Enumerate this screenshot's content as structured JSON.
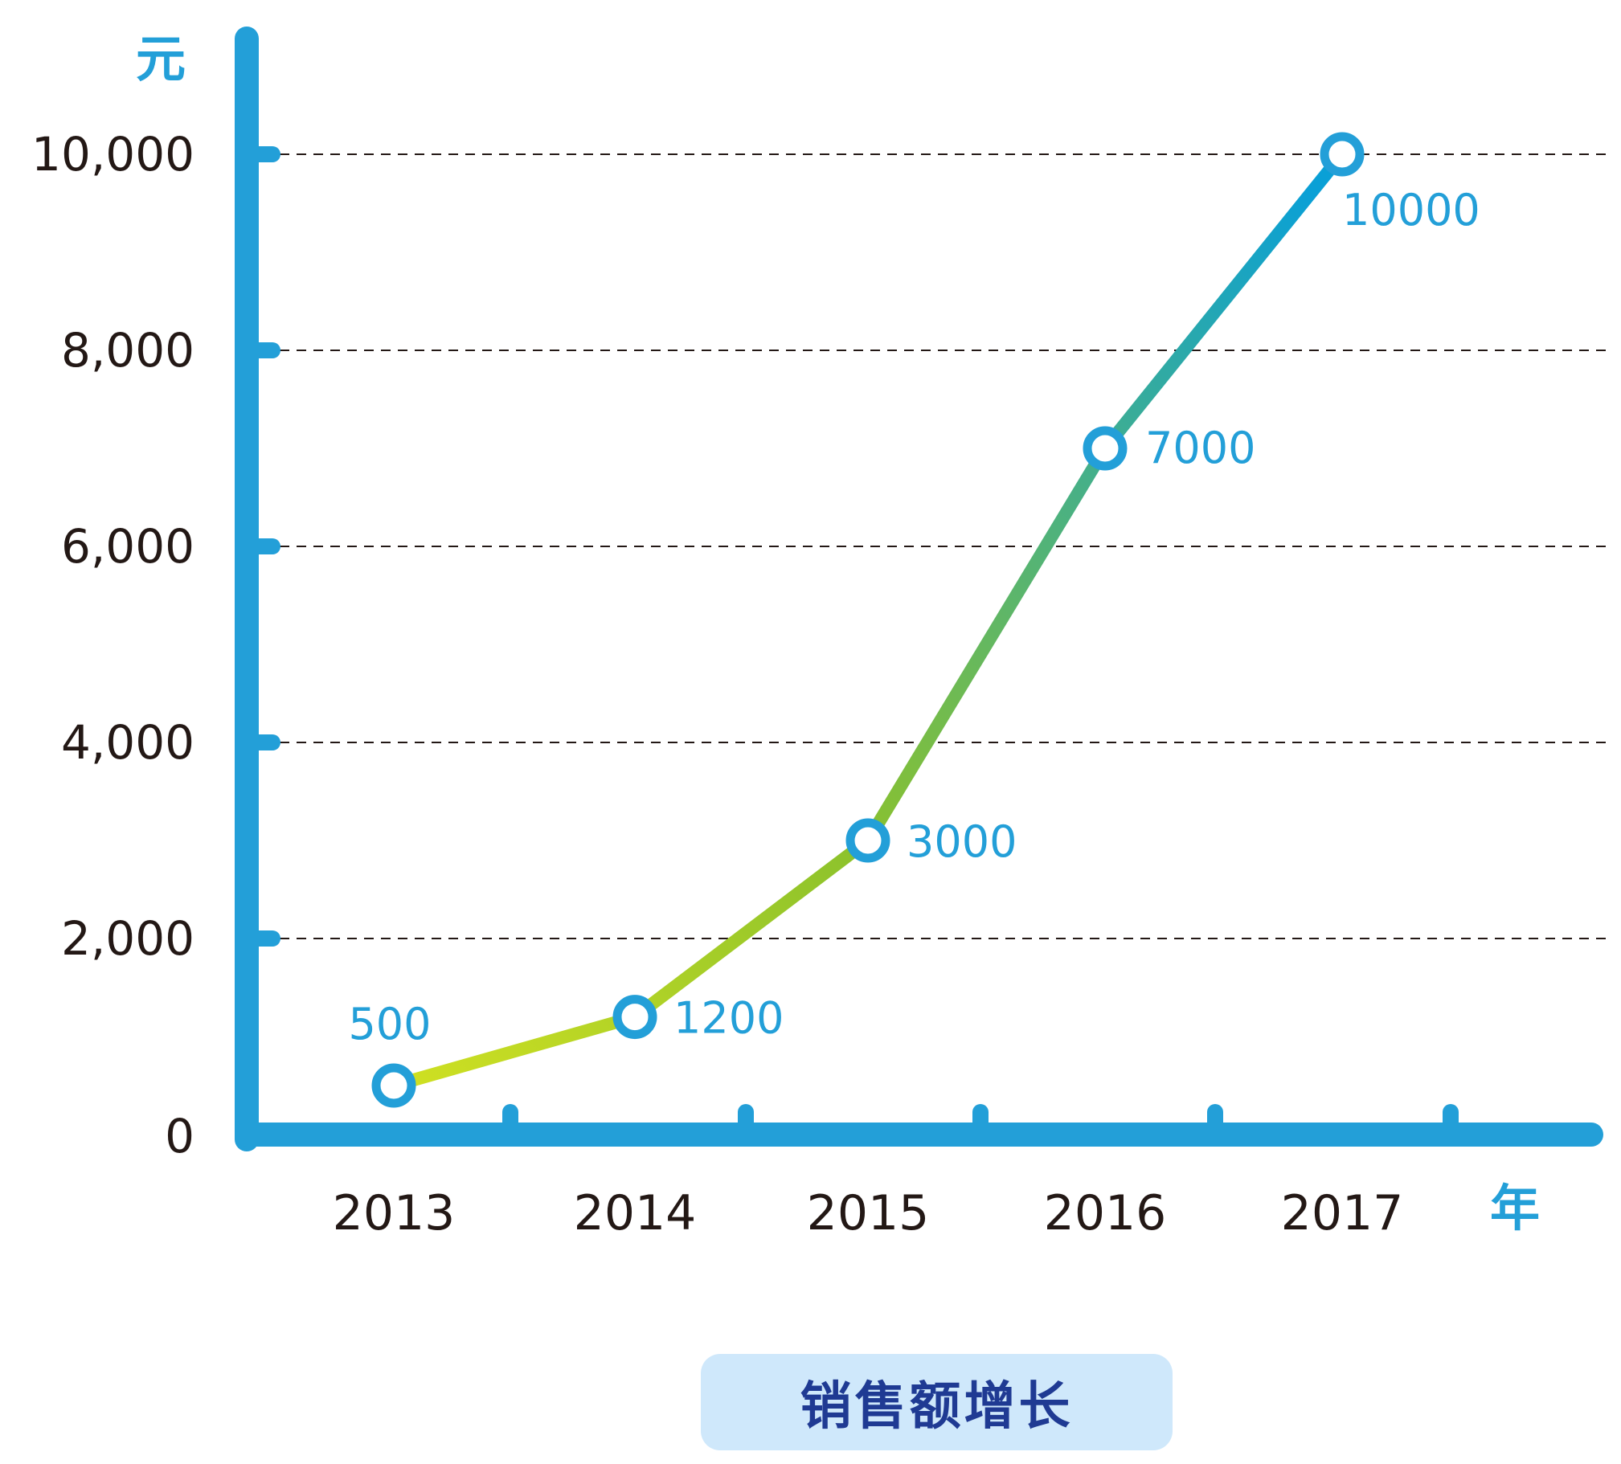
{
  "chart_data": {
    "type": "line",
    "title": "销售额增长",
    "xlabel": "年",
    "ylabel": "元",
    "categories": [
      "2013",
      "2014",
      "2015",
      "2016",
      "2017"
    ],
    "series": [
      {
        "values": [
          500,
          1200,
          3000,
          7000,
          10000
        ],
        "data_labels": [
          "500",
          "1200",
          "3000",
          "7000",
          "10000"
        ]
      }
    ],
    "ylim": [
      0,
      10000
    ],
    "y_ticks": [
      0,
      2000,
      4000,
      6000,
      8000,
      10000
    ],
    "y_tick_labels": [
      "0",
      "2,000",
      "4,000",
      "6,000",
      "8,000",
      "10,000"
    ],
    "grid": "horizontal-dashed",
    "colors": {
      "axis": "#239fd8",
      "line_start": "#cfe022",
      "line_mid": "#8cc22c",
      "line_end": "#0aa0d6",
      "marker_stroke": "#239fd8",
      "data_label": "#239fd8",
      "title_bg": "#cfe8fb",
      "title_text": "#1f3a93"
    }
  }
}
